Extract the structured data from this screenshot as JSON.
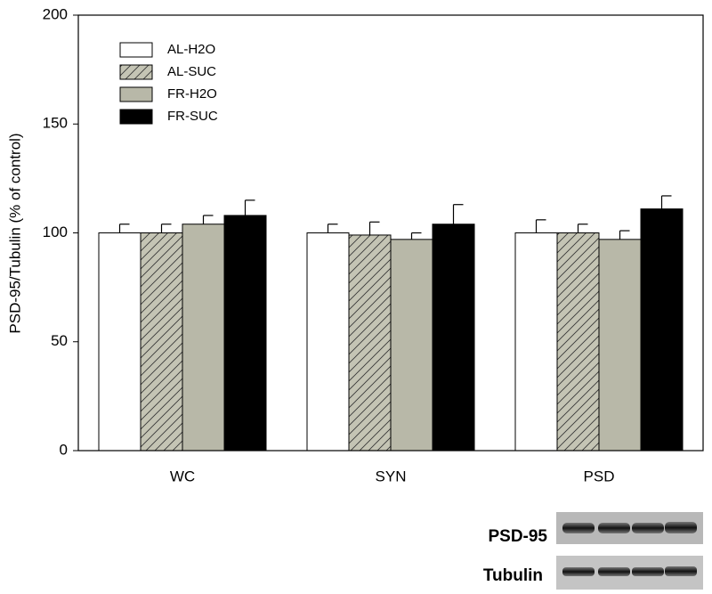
{
  "chart_data": {
    "type": "bar",
    "y_label": "PSD-95/Tubulin (% of control)",
    "categories": [
      "WC",
      "SYN",
      "PSD"
    ],
    "series": [
      {
        "name": "AL-H2O",
        "color": "#ffffff",
        "values": [
          100,
          100,
          100
        ],
        "errors": [
          4,
          4,
          6
        ]
      },
      {
        "name": "AL-SUC",
        "color": "#c4c4b4",
        "hatch": true,
        "values": [
          100,
          99,
          100
        ],
        "errors": [
          4,
          6,
          4
        ]
      },
      {
        "name": "FR-H2O",
        "color": "#b8b8a8",
        "values": [
          104,
          97,
          97
        ],
        "errors": [
          4,
          3,
          4
        ]
      },
      {
        "name": "FR-SUC",
        "color": "#000000",
        "values": [
          108,
          104,
          111
        ],
        "errors": [
          7,
          9,
          6
        ]
      }
    ],
    "ylim": [
      0,
      200
    ],
    "yticks": [
      0,
      50,
      100,
      150,
      200
    ]
  },
  "blot": {
    "labels": [
      "PSD-95",
      "Tubulin"
    ]
  }
}
